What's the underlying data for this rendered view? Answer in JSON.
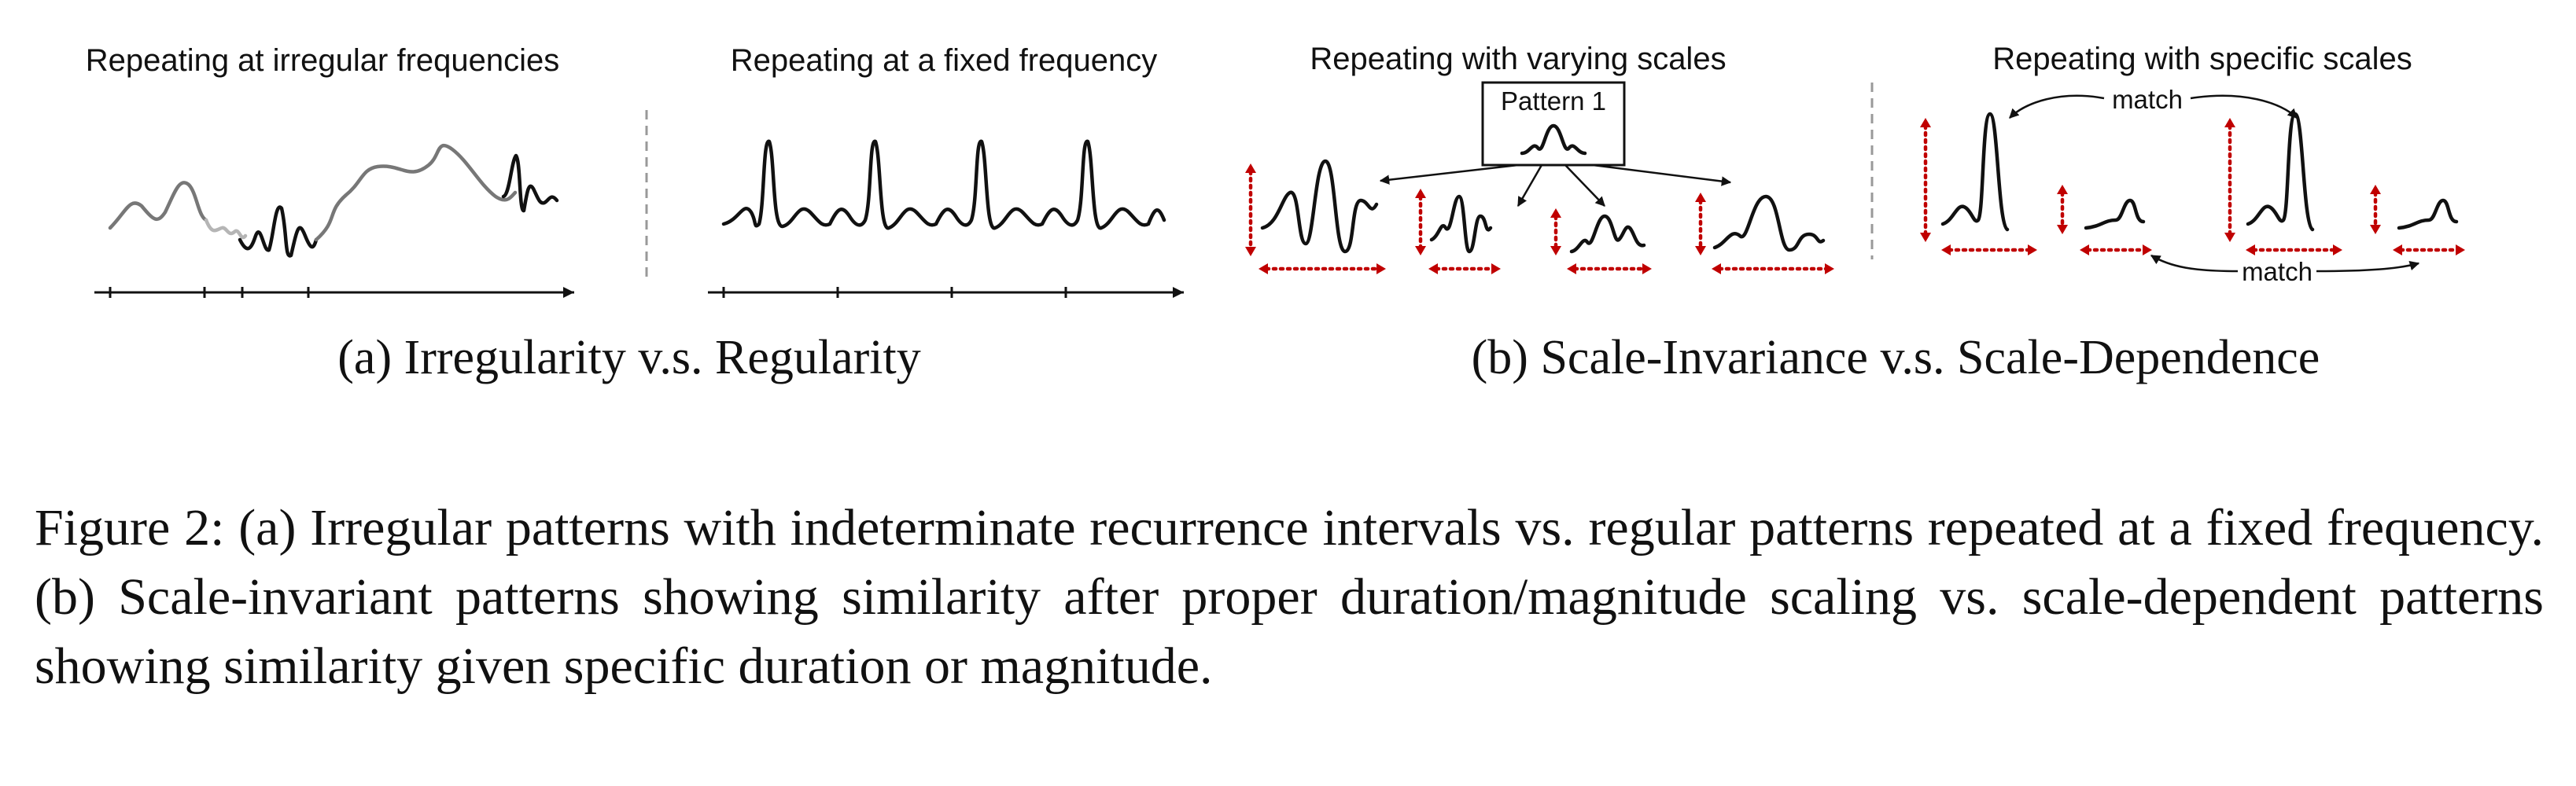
{
  "panels": {
    "a_left_title": "Repeating at irregular frequencies",
    "a_right_title": "Repeating at a fixed frequency",
    "b_left_title": "Repeating with varying scales",
    "b_right_title": "Repeating with specific scales",
    "pattern_label": "Pattern 1",
    "match_top": "match",
    "match_bottom": "match"
  },
  "subcaptions": {
    "a": "(a)  Irregularity v.s. Regularity",
    "b": "(b)  Scale-Invariance v.s. Scale-Dependence"
  },
  "caption": "Figure 2: (a) Irregular patterns with indeterminate recurrence intervals vs. regular patterns repeated at a fixed frequency. (b) Scale-invariant patterns showing similarity after proper duration/magnitude scaling vs. scale-dependent patterns showing similarity given specific duration or magnitude.",
  "colors": {
    "annotation_red": "#c00000",
    "ink": "#111111",
    "separator": "#999999"
  }
}
